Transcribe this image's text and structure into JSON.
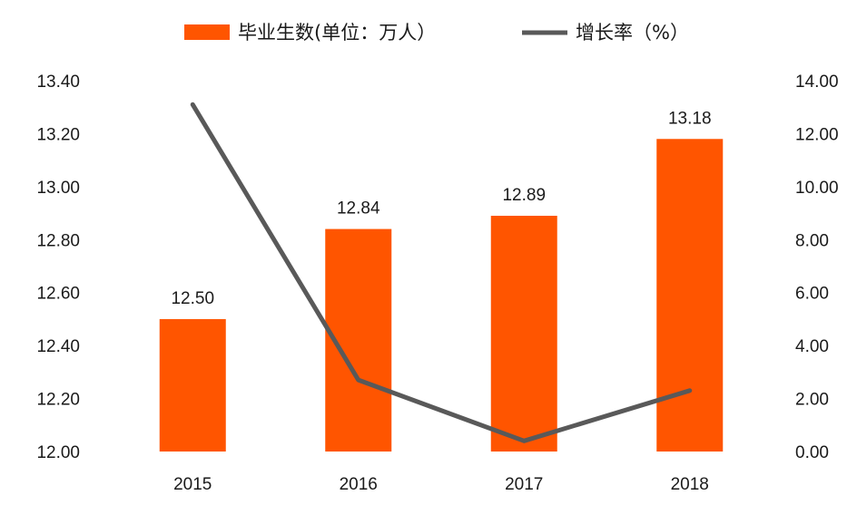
{
  "chart_data": {
    "type": "bar",
    "categories": [
      "2015",
      "2016",
      "2017",
      "2018"
    ],
    "series": [
      {
        "name": "毕业生数(单位：万人）",
        "kind": "bar",
        "axis": "left",
        "values": [
          12.5,
          12.84,
          12.89,
          13.18
        ],
        "data_labels": [
          "12.50",
          "12.84",
          "12.89",
          "13.18"
        ]
      },
      {
        "name": "增长率（%）",
        "kind": "line",
        "axis": "right",
        "values": [
          13.1,
          2.7,
          0.4,
          2.3
        ]
      }
    ],
    "y_left": {
      "min": 12.0,
      "max": 13.4,
      "ticks": [
        "12.00",
        "12.20",
        "12.40",
        "12.60",
        "12.80",
        "13.00",
        "13.20",
        "13.40"
      ]
    },
    "y_right": {
      "min": 0,
      "max": 14,
      "ticks": [
        "0.00",
        "2.00",
        "4.00",
        "6.00",
        "8.00",
        "10.00",
        "12.00",
        "14.00"
      ]
    },
    "grid": false,
    "legend_position": "top-center",
    "colors": {
      "bar": "#FF5500",
      "line": "#595959"
    }
  }
}
